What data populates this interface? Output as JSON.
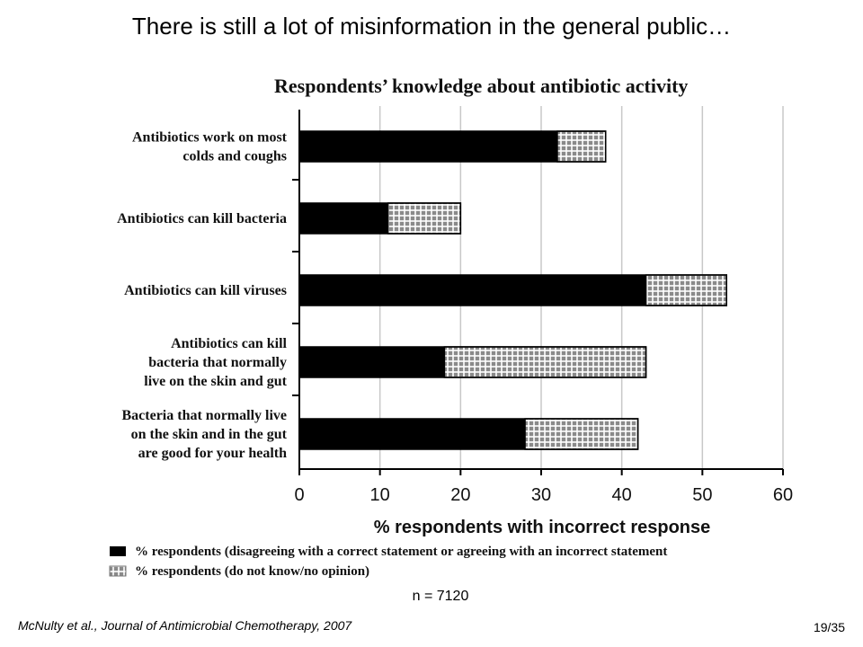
{
  "slide": {
    "title": "There is still a lot of misinformation in the general public…",
    "sample_size": "n = 7120",
    "citation": "McNulty et al., Journal of Antimicrobial Chemotherapy, 2007",
    "page_number": "19/35"
  },
  "chart_data": {
    "type": "bar",
    "orientation": "horizontal",
    "stacked": true,
    "title": "Respondents’ knowledge about antibiotic activity",
    "xlabel": "% respondents with incorrect response",
    "ylabel": "",
    "xlim": [
      0,
      60
    ],
    "xticks": [
      0,
      10,
      20,
      30,
      40,
      50,
      60
    ],
    "grid": "vertical",
    "legend_position": "bottom",
    "categories": [
      [
        "Antibiotics work on most",
        "colds and coughs"
      ],
      [
        "Antibiotics can kill bacteria"
      ],
      [
        "Antibiotics can kill viruses"
      ],
      [
        "Antibiotics can kill",
        "bacteria that normally",
        "live on the skin and gut"
      ],
      [
        "Bacteria that normally live",
        "on the skin and in the gut",
        "are good for your health"
      ]
    ],
    "series": [
      {
        "name": "% respondents (disagreeing with a correct statement or agreeing with an incorrect statement",
        "values": [
          32,
          11,
          43,
          18,
          28
        ],
        "color": "#000000"
      },
      {
        "name": "% respondents (do not know/no opinion)",
        "values": [
          6,
          9,
          10,
          25,
          14
        ],
        "color": "#9a9a9a"
      }
    ]
  }
}
